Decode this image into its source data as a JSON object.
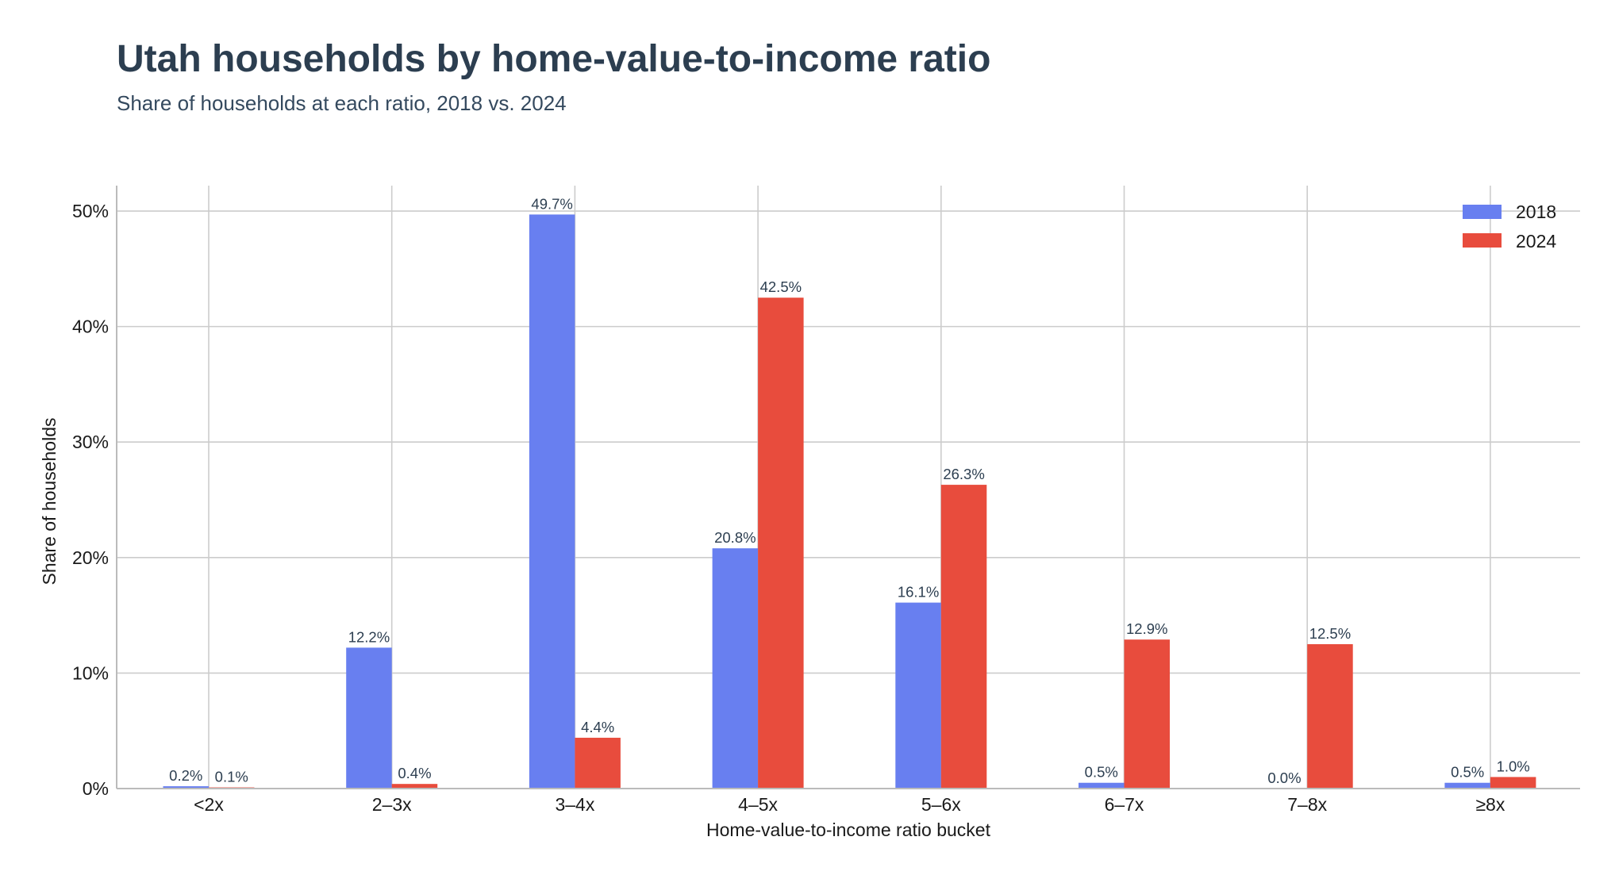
{
  "chart_data": {
    "type": "bar",
    "title": "Utah households by home-value-to-income ratio",
    "subtitle": "Share of households at each ratio, 2018 vs. 2024",
    "xlabel": "Home-value-to-income ratio bucket",
    "ylabel": "Share of households",
    "categories": [
      "<2x",
      "2–3x",
      "3–4x",
      "4–5x",
      "5–6x",
      "6–7x",
      "7–8x",
      "≥8x"
    ],
    "series": [
      {
        "name": "2018",
        "color": "#687ff0",
        "values": [
          0.2,
          12.2,
          49.7,
          20.8,
          16.1,
          0.5,
          0.0,
          0.5
        ],
        "labels": [
          "0.2%",
          "12.2%",
          "49.7%",
          "20.8%",
          "16.1%",
          "0.5%",
          "0.0%",
          "0.5%"
        ]
      },
      {
        "name": "2024",
        "color": "#e84c3d",
        "values": [
          0.1,
          0.4,
          4.4,
          42.5,
          26.3,
          12.9,
          12.5,
          1.0
        ],
        "labels": [
          "0.1%",
          "0.4%",
          "4.4%",
          "42.5%",
          "26.3%",
          "12.9%",
          "12.5%",
          "1.0%"
        ]
      }
    ],
    "ylim": [
      0,
      52.2
    ],
    "yticks": [
      0,
      10,
      20,
      30,
      40,
      50
    ],
    "ytick_labels": [
      "0%",
      "10%",
      "20%",
      "30%",
      "40%",
      "50%"
    ],
    "grid": true,
    "legend_position": "top-right"
  }
}
